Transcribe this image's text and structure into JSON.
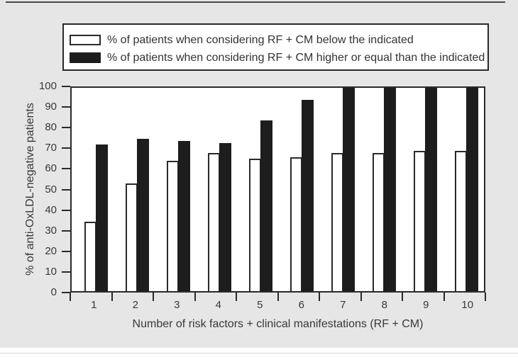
{
  "figure": {
    "panel_background_color": "#e6e6e6",
    "plot_background_color": "#ffffff",
    "line_color": "#2a2a2a",
    "bar_black_color": "#1d1d1d",
    "bar_white_color": "#ffffff"
  },
  "legend": {
    "items": [
      {
        "swatch": "white",
        "label": "% of patients when considering RF + CM below the indicated"
      },
      {
        "swatch": "black",
        "label": "% of patients when considering RF + CM higher or equal than the indicated"
      }
    ]
  },
  "chart_data": {
    "type": "bar",
    "title": "",
    "categories": [
      "1",
      "2",
      "3",
      "4",
      "5",
      "6",
      "7",
      "8",
      "9",
      "10"
    ],
    "series": [
      {
        "name": "% of patients when considering RF + CM below the indicated",
        "color": "#ffffff",
        "values": [
          34,
          53,
          64,
          68,
          65,
          66,
          68,
          68,
          69,
          69
        ]
      },
      {
        "name": "% of patients when considering RF + CM higher or equal than the indicated",
        "color": "#1d1d1d",
        "values": [
          72,
          75,
          74,
          73,
          84,
          94,
          100,
          100,
          100,
          100
        ]
      }
    ],
    "xlabel": "Number of risk factors + clinical manifestations (RF + CM)",
    "ylabel": "% of anti-OxLDL-negative patients",
    "ylim": [
      0,
      100
    ],
    "yticks": [
      0,
      10,
      20,
      30,
      40,
      50,
      60,
      70,
      80,
      90,
      100
    ],
    "grid": false,
    "legend_position": "top"
  }
}
